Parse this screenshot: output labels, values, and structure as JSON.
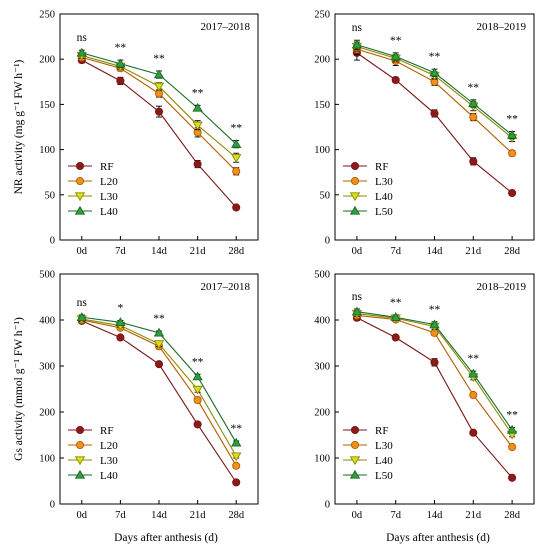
{
  "figure": {
    "x_axis_label": "Days after anthesis (d)",
    "series_styles": {
      "RF": {
        "color": "#8b1a1a",
        "stroke": "#7a1414",
        "marker": "circle"
      },
      "L20": {
        "color": "#f0901e",
        "stroke": "#b35c00",
        "marker": "circle"
      },
      "L30_circle": {
        "color": "#f0901e",
        "stroke": "#b35c00",
        "marker": "circle"
      },
      "L30_tri": {
        "color": "#d8e01c",
        "stroke": "#8a8a00",
        "marker": "triangle-down"
      },
      "L40_tri": {
        "color": "#d8e01c",
        "stroke": "#8a8a00",
        "marker": "triangle-down"
      },
      "L40_green": {
        "color": "#2e9e3e",
        "stroke": "#1a6a28",
        "marker": "triangle-up"
      },
      "L50": {
        "color": "#2e9e3e",
        "stroke": "#1a6a28",
        "marker": "triangle-up"
      }
    }
  },
  "chart_data": [
    {
      "type": "line",
      "year": "2017–2018",
      "ylabel": "NR activity (mg g⁻¹ FW h⁻¹)",
      "ylim": [
        0,
        250
      ],
      "yticks": [
        "0",
        "50",
        "100",
        "150",
        "200",
        "250"
      ],
      "categories": [
        "0d",
        "7d",
        "14d",
        "21d",
        "28d"
      ],
      "significance": [
        "ns",
        "**",
        "**",
        "**",
        "**"
      ],
      "series": [
        {
          "name": "RF",
          "style": "RF",
          "values": [
            199,
            176,
            142,
            84,
            36
          ],
          "errors": [
            3,
            4,
            6,
            4,
            2
          ]
        },
        {
          "name": "L20",
          "style": "L20",
          "values": [
            202,
            190,
            162,
            119,
            76
          ],
          "errors": [
            3,
            3,
            4,
            5,
            4
          ]
        },
        {
          "name": "L30",
          "style": "L30_tri",
          "values": [
            204,
            192,
            170,
            127,
            91
          ],
          "errors": [
            3,
            3,
            4,
            5,
            5
          ]
        },
        {
          "name": "L40",
          "style": "L40_green",
          "values": [
            207,
            195,
            183,
            146,
            106
          ],
          "errors": [
            3,
            4,
            4,
            3,
            4
          ]
        }
      ]
    },
    {
      "type": "line",
      "year": "2018–2019",
      "ylabel": "",
      "ylim": [
        0,
        250
      ],
      "yticks": [
        "0",
        "50",
        "100",
        "150",
        "200",
        "250"
      ],
      "categories": [
        "0d",
        "7d",
        "14d",
        "21d",
        "28d"
      ],
      "significance": [
        "ns",
        "**",
        "**",
        "**",
        "**"
      ],
      "series": [
        {
          "name": "RF",
          "style": "RF",
          "values": [
            207,
            177,
            140,
            87,
            52
          ],
          "errors": [
            8,
            3,
            4,
            4,
            2
          ]
        },
        {
          "name": "L30",
          "style": "L30_circle",
          "values": [
            211,
            198,
            175,
            136,
            96
          ],
          "errors": [
            6,
            5,
            4,
            4,
            3
          ]
        },
        {
          "name": "L40",
          "style": "L40_tri",
          "values": [
            214,
            201,
            182,
            148,
            113
          ],
          "errors": [
            5,
            4,
            4,
            5,
            4
          ]
        },
        {
          "name": "L50",
          "style": "L50",
          "values": [
            216,
            203,
            185,
            151,
            116
          ],
          "errors": [
            5,
            4,
            4,
            4,
            4
          ]
        }
      ]
    },
    {
      "type": "line",
      "year": "2017–2018",
      "ylabel": "Gs activity (mmol g⁻¹ FW h⁻¹)",
      "ylim": [
        0,
        500
      ],
      "yticks": [
        "0",
        "100",
        "200",
        "300",
        "400",
        "500"
      ],
      "categories": [
        "0d",
        "7d",
        "14d",
        "21d",
        "28d"
      ],
      "significance": [
        "ns",
        "*",
        "**",
        "**",
        "**"
      ],
      "series": [
        {
          "name": "RF",
          "style": "RF",
          "values": [
            398,
            362,
            304,
            173,
            47
          ],
          "errors": [
            5,
            4,
            5,
            5,
            3
          ]
        },
        {
          "name": "L20",
          "style": "L20",
          "values": [
            400,
            383,
            343,
            226,
            83
          ],
          "errors": [
            5,
            4,
            6,
            6,
            4
          ]
        },
        {
          "name": "L30",
          "style": "L30_tri",
          "values": [
            402,
            388,
            348,
            249,
            104
          ],
          "errors": [
            5,
            4,
            6,
            6,
            4
          ]
        },
        {
          "name": "L40",
          "style": "L40_green",
          "values": [
            406,
            395,
            372,
            277,
            133
          ],
          "errors": [
            5,
            4,
            4,
            5,
            4
          ]
        }
      ]
    },
    {
      "type": "line",
      "year": "2018–2019",
      "ylabel": "",
      "ylim": [
        0,
        500
      ],
      "yticks": [
        "0",
        "100",
        "200",
        "300",
        "400",
        "500"
      ],
      "categories": [
        "0d",
        "7d",
        "14d",
        "21d",
        "28d"
      ],
      "significance": [
        "ns",
        "**",
        "**",
        "**",
        "**"
      ],
      "series": [
        {
          "name": "RF",
          "style": "RF",
          "values": [
            405,
            362,
            308,
            155,
            57
          ],
          "errors": [
            6,
            5,
            8,
            4,
            3
          ]
        },
        {
          "name": "L30",
          "style": "L30_circle",
          "values": [
            410,
            401,
            372,
            237,
            124
          ],
          "errors": [
            6,
            5,
            6,
            5,
            4
          ]
        },
        {
          "name": "L40",
          "style": "L40_tri",
          "values": [
            414,
            404,
            386,
            276,
            151
          ],
          "errors": [
            6,
            5,
            6,
            6,
            5
          ]
        },
        {
          "name": "L50",
          "style": "L50",
          "values": [
            418,
            406,
            390,
            283,
            161
          ],
          "errors": [
            6,
            5,
            6,
            6,
            5
          ]
        }
      ]
    }
  ]
}
